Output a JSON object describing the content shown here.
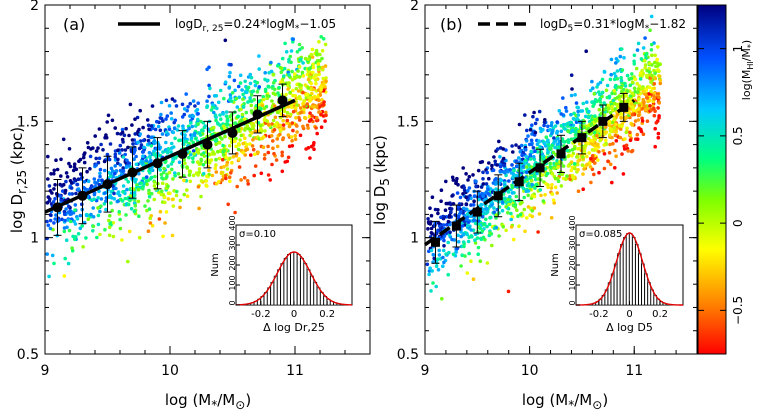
{
  "chart_data": [
    {
      "type": "scatter",
      "panel_label": "(a)",
      "xlabel": "log (M*/M⊙)",
      "ylabel": "log Dr,25 (kpc)",
      "xlim": [
        9,
        11.6
      ],
      "ylim": [
        0.5,
        2
      ],
      "xticks": [
        "9",
        "10",
        "11"
      ],
      "yticks": [
        "0.5",
        "1",
        "1.5",
        "2"
      ],
      "legend_text": "logDr,25=0.24*logM*−1.05",
      "legend_line": "solid",
      "fit": {
        "slope": 0.24,
        "intercept": -1.05
      },
      "binned_medians": {
        "x": [
          9.1,
          9.3,
          9.5,
          9.7,
          9.9,
          10.1,
          10.3,
          10.5,
          10.7,
          10.9
        ],
        "y": [
          1.13,
          1.18,
          1.23,
          1.28,
          1.32,
          1.36,
          1.4,
          1.45,
          1.53,
          1.59
        ],
        "err": [
          0.12,
          0.12,
          0.12,
          0.11,
          0.11,
          0.1,
          0.1,
          0.09,
          0.08,
          0.07
        ]
      },
      "scatter_sigma": 0.1,
      "inset": {
        "sigma_label": "σ=0.10",
        "ylabel": "Num",
        "xlabel": "Δ log Dr,25",
        "xticks": [
          "-0.2",
          "0.0",
          "0.2"
        ],
        "yticks": [
          "0",
          "100",
          "200",
          "300",
          "400"
        ],
        "ylim": [
          0,
          400
        ],
        "sigma": 0.1,
        "peak": 265
      }
    },
    {
      "type": "scatter",
      "panel_label": "(b)",
      "xlabel": "log (M*/M⊙)",
      "ylabel": "log D5 (kpc)",
      "xlim": [
        9,
        11.6
      ],
      "ylim": [
        0.5,
        2
      ],
      "xticks": [
        "9",
        "10",
        "11"
      ],
      "yticks": [
        "0.5",
        "1",
        "1.5",
        "2"
      ],
      "legend_text": "logD5=0.31*logM*−1.82",
      "legend_line": "dashed",
      "fit": {
        "slope": 0.31,
        "intercept": -1.82
      },
      "binned_medians": {
        "x": [
          9.1,
          9.3,
          9.5,
          9.7,
          9.9,
          10.1,
          10.3,
          10.5,
          10.7,
          10.9
        ],
        "y": [
          0.98,
          1.05,
          1.11,
          1.18,
          1.24,
          1.3,
          1.36,
          1.43,
          1.5,
          1.56
        ],
        "err": [
          0.09,
          0.09,
          0.09,
          0.09,
          0.08,
          0.08,
          0.08,
          0.07,
          0.07,
          0.06
        ]
      },
      "scatter_sigma": 0.085,
      "inset": {
        "sigma_label": "σ=0.085",
        "ylabel": "Num",
        "xlabel": "Δ log D5",
        "xticks": [
          "-0.2",
          "0.0",
          "0.2"
        ],
        "yticks": [
          "0",
          "100",
          "200",
          "300",
          "400"
        ],
        "ylim": [
          0,
          400
        ],
        "sigma": 0.085,
        "peak": 360
      }
    }
  ],
  "colorbar": {
    "label": "log(MHI/M*)",
    "range": [
      -0.75,
      1.25
    ],
    "ticks": [
      "−0.5",
      "0",
      "0.5",
      "1"
    ],
    "colors": [
      "#ff0000",
      "#ff7f00",
      "#ffff00",
      "#7fff00",
      "#00ff7f",
      "#00c8ff",
      "#0050ff",
      "#000080"
    ]
  }
}
